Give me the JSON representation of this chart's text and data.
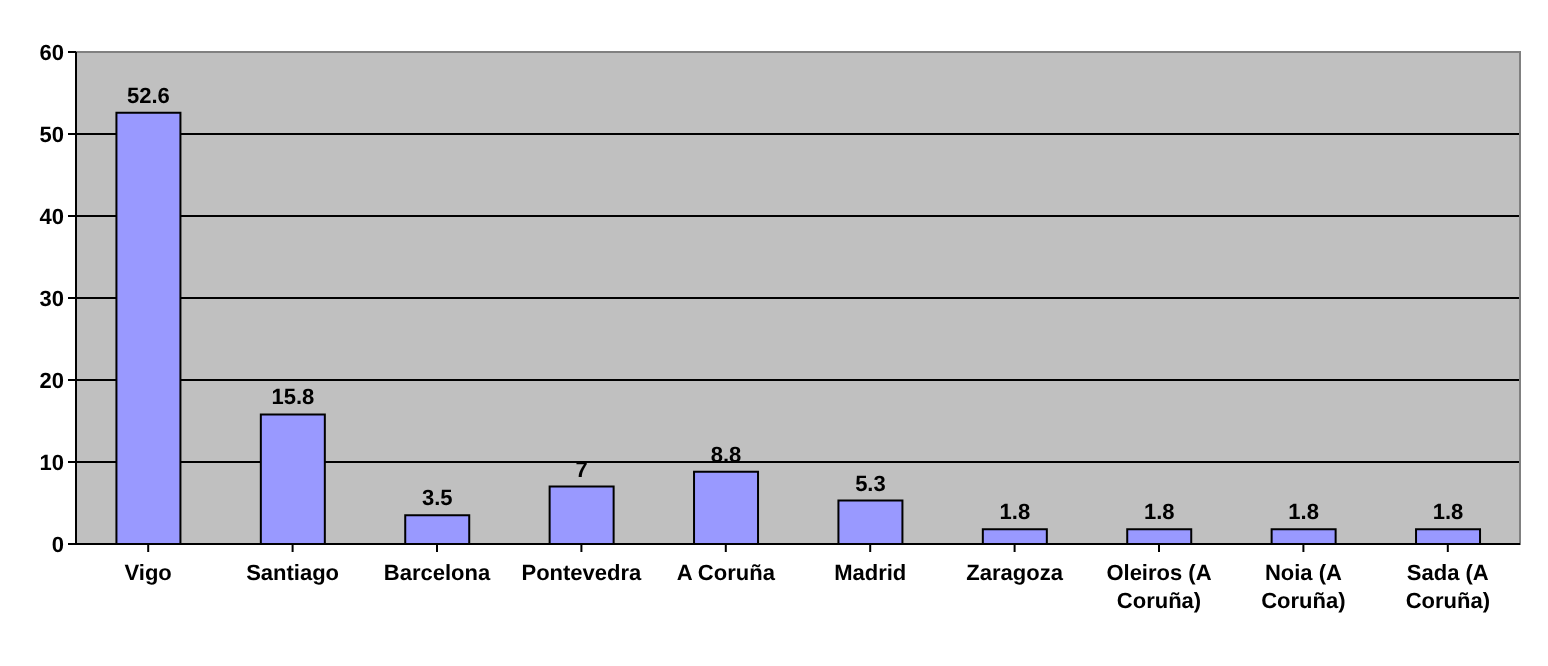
{
  "chart_data": {
    "type": "bar",
    "categories": [
      "Vigo",
      "Santiago",
      "Barcelona",
      "Pontevedra",
      "A Coruña",
      "Madrid",
      "Zaragoza",
      "Oleiros (A Coruña)",
      "Noia (A Coruña)",
      "Sada (A Coruña)"
    ],
    "values": [
      52.6,
      15.8,
      3.5,
      7,
      8.8,
      5.3,
      1.8,
      1.8,
      1.8,
      1.8
    ],
    "color": "#9999ff",
    "ylim": [
      0,
      60
    ],
    "yticks": [
      0,
      10,
      20,
      30,
      40,
      50,
      60
    ],
    "grid": "y",
    "data_labels": true
  }
}
